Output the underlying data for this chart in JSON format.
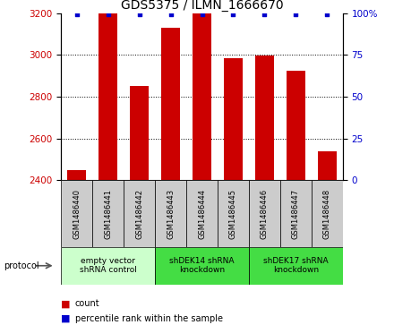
{
  "title": "GDS5375 / ILMN_1666670",
  "samples": [
    "GSM1486440",
    "GSM1486441",
    "GSM1486442",
    "GSM1486443",
    "GSM1486444",
    "GSM1486445",
    "GSM1486446",
    "GSM1486447",
    "GSM1486448"
  ],
  "counts": [
    2450,
    3200,
    2850,
    3130,
    3200,
    2985,
    2995,
    2925,
    2540
  ],
  "percentile_ranks": [
    99,
    99,
    99,
    99,
    99,
    99,
    99,
    99,
    99
  ],
  "bar_color": "#cc0000",
  "percentile_color": "#0000cc",
  "ylim_left": [
    2400,
    3200
  ],
  "ylim_right": [
    0,
    100
  ],
  "yticks_left": [
    2400,
    2600,
    2800,
    3000,
    3200
  ],
  "yticks_right": [
    0,
    25,
    50,
    75,
    100
  ],
  "yticklabels_right": [
    "0",
    "25",
    "50",
    "75",
    "100%"
  ],
  "groups": [
    {
      "label": "empty vector\nshRNA control",
      "start": 0,
      "end": 3,
      "color": "#ccffcc"
    },
    {
      "label": "shDEK14 shRNA\nknockdown",
      "start": 3,
      "end": 6,
      "color": "#44dd44"
    },
    {
      "label": "shDEK17 shRNA\nknockdown",
      "start": 6,
      "end": 9,
      "color": "#44dd44"
    }
  ],
  "protocol_label": "protocol",
  "legend_count_label": "count",
  "legend_percentile_label": "percentile rank within the sample",
  "bg_color": "#ffffff",
  "sample_box_color": "#cccccc",
  "title_fontsize": 10,
  "tick_fontsize": 7.5,
  "sample_fontsize": 6,
  "group_fontsize": 6.5,
  "legend_fontsize": 7
}
